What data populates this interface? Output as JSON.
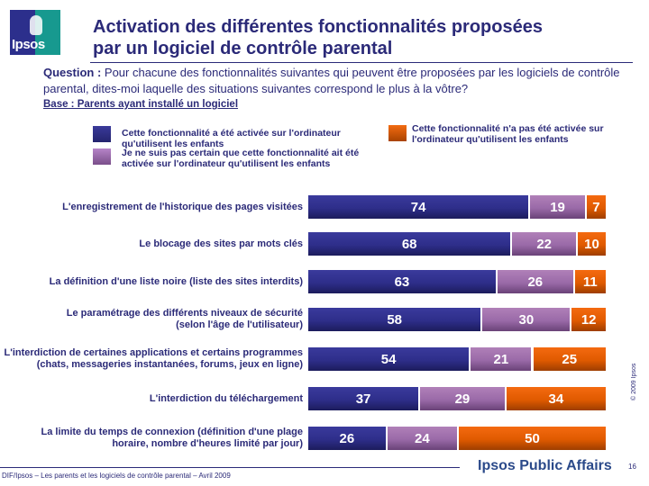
{
  "logo": {
    "text": "Ipsos"
  },
  "header": {
    "title_line1": "Activation des différentes fonctionnalités proposées",
    "title_line2": "par un logiciel de contrôle parental"
  },
  "question": {
    "label": "Question :",
    "text": " Pour chacune des fonctionnalités suivantes qui peuvent être proposées par les logiciels de contrôle parental, dites-moi laquelle des situations suivantes correspond le plus à la vôtre?"
  },
  "base": "Base : Parents ayant installé un logiciel",
  "colors": {
    "activated": "#2e2e8a",
    "unsure": "#9a6aa8",
    "not_activated": "#e05a00",
    "text": "#2b2a78"
  },
  "chart_data": {
    "type": "bar",
    "orientation": "horizontal",
    "stacked": true,
    "percent_stacked": true,
    "title": "Activation des différentes fonctionnalités proposées par un logiciel de contrôle parental",
    "xlabel": "",
    "ylabel": "",
    "xlim": [
      0,
      100
    ],
    "grid": false,
    "legend_position": "top",
    "categories": [
      "L'enregistrement de l'historique des pages visitées",
      "Le blocage des sites par mots clés",
      "La définition d'une liste noire (liste des sites interdits)",
      "Le paramétrage des différents niveaux de sécurité (selon l'âge de l'utilisateur)",
      "L'interdiction de certaines applications et certains programmes (chats, messageries instantanées, forums, jeux en ligne)",
      "L'interdiction du téléchargement",
      "La limite du temps de connexion (définition d'une plage horaire, nombre d'heures limité par jour)"
    ],
    "category_lines": [
      [
        "L'enregistrement de l'historique des pages visitées"
      ],
      [
        "Le blocage des sites par mots clés"
      ],
      [
        "La définition d'une liste noire (liste des sites interdits)"
      ],
      [
        "Le paramétrage des différents niveaux de sécurité",
        "(selon l'âge de l'utilisateur)"
      ],
      [
        "L'interdiction de certaines applications et certains programmes",
        "(chats, messageries instantanées, forums, jeux en ligne)"
      ],
      [
        "L'interdiction du téléchargement"
      ],
      [
        "La limite du temps de connexion (définition d'une plage",
        "horaire, nombre d'heures limité par jour)"
      ]
    ],
    "series": [
      {
        "name": "Cette fonctionnalité a été activée sur l'ordinateur qu'utilisent les enfants",
        "values": [
          74,
          68,
          63,
          58,
          54,
          37,
          26
        ]
      },
      {
        "name": "Je ne suis pas certain que cette fonctionnalité ait été activée sur l'ordinateur qu'utilisent les enfants",
        "values": [
          19,
          22,
          26,
          30,
          21,
          29,
          24
        ]
      },
      {
        "name": "Cette fonctionnalité n'a pas été activée sur l'ordinateur qu'utilisent les enfants",
        "values": [
          7,
          10,
          11,
          12,
          25,
          34,
          50
        ]
      }
    ]
  },
  "legend": {
    "activated_line1": "Cette fonctionnalité a été activée sur l'ordinateur",
    "activated_line2": "qu'utilisent les enfants",
    "unsure_line1": "Je ne suis pas certain que cette fonctionnalité ait été",
    "unsure_line2": "activée sur l'ordinateur qu'utilisent les enfants",
    "not_activated_line1": "Cette fonctionnalité n'a pas été activée sur",
    "not_activated_line2": "l'ordinateur qu'utilisent les enfants"
  },
  "copyright": "© 2009 Ipsos",
  "footer": {
    "source": "DIF/Ipsos – Les parents et les logiciels de contrôle parental – Avril 2009",
    "brand": "Ipsos Public Affairs",
    "page_number": "16"
  }
}
